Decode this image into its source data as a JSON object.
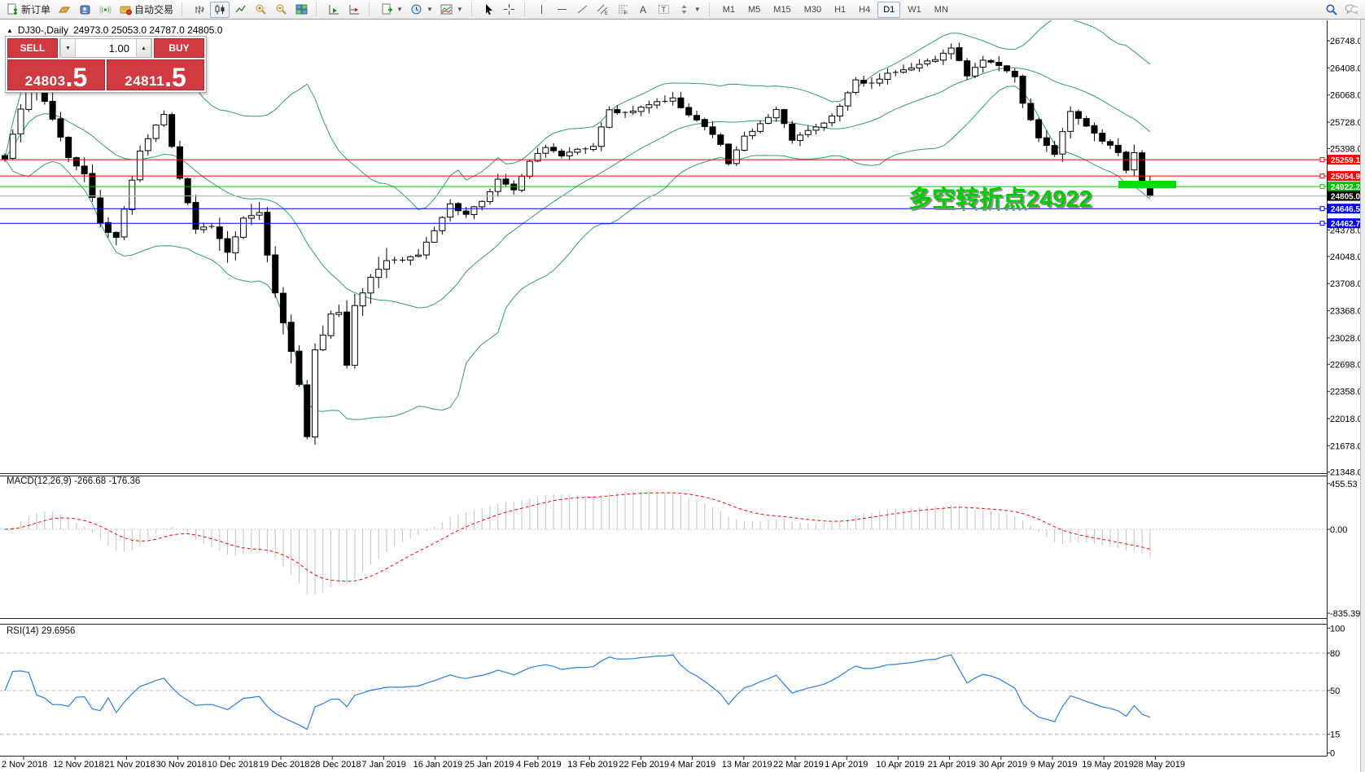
{
  "toolbar": {
    "new_order_label": "新订单",
    "autotrade_label": "自动交易",
    "timeframes": [
      "M1",
      "M5",
      "M15",
      "M30",
      "H1",
      "H4",
      "D1",
      "W1",
      "MN"
    ],
    "active_timeframe": "D1"
  },
  "chart": {
    "title_symbol": "DJ30-,Daily",
    "title_ohlc": "24973.0 25053.0 24787.0 24805.0",
    "annotation": "多空转折点24922"
  },
  "trade_panel": {
    "sell_label": "SELL",
    "buy_label": "BUY",
    "volume": "1.00",
    "sell_price_main": "24803",
    "sell_price_big": ".5",
    "buy_price_main": "24811",
    "buy_price_big": ".5"
  },
  "colors": {
    "bull": "#ffffff",
    "bear": "#000000",
    "wick": "#000000",
    "bollinger": "#2f9e68",
    "level_red": "#ff0000",
    "level_blue": "#0000ff",
    "level_green": "#00c400",
    "current_price_line": "#b8b8b8",
    "current_tag_bg": "#000000",
    "macd_hist": "#c3c3c3",
    "macd_signal": "#ff0000",
    "rsi_line": "#2a7fde",
    "highlight": "#00dd00",
    "panel_red": "#d23a41",
    "annotation_green": "#00cc00"
  },
  "chart_data": {
    "type": "candlestick+indicators",
    "symbol": "DJ30",
    "timeframe": "Daily",
    "bars": 145,
    "title_ohlc": {
      "open": 24973.0,
      "high": 25053.0,
      "low": 24787.0,
      "close": 24805.0
    },
    "price_axis_ticks": [
      26748,
      26408,
      26068,
      25728,
      25398,
      24378,
      24048,
      23708,
      23368,
      23028,
      22698,
      22358,
      22018,
      21678,
      21348
    ],
    "price_tags": [
      {
        "label": "25259.1",
        "value": 25259.1,
        "color": "#ff0000",
        "square": true
      },
      {
        "label": "25054.9",
        "value": 25054.9,
        "color": "#ff0000",
        "square": true
      },
      {
        "label": "24922.2",
        "value": 24922.2,
        "color": "#00c400",
        "square": true
      },
      {
        "label": "24805.0",
        "value": 24805.0,
        "color": "#000000",
        "line_color": "#b8b8b8",
        "square": false
      },
      {
        "label": "24646.5",
        "value": 24646.5,
        "color": "#0000ff",
        "square": true
      },
      {
        "label": "24462.7",
        "value": 24462.7,
        "color": "#0000ff",
        "square": true
      }
    ],
    "anchor_closes": [
      [
        0,
        25270
      ],
      [
        3,
        26180
      ],
      [
        5,
        25989
      ],
      [
        8,
        25286
      ],
      [
        10,
        25080
      ],
      [
        12,
        24465
      ],
      [
        14,
        24286
      ],
      [
        15,
        24640
      ],
      [
        17,
        25366
      ],
      [
        20,
        25826
      ],
      [
        22,
        25027
      ],
      [
        24,
        24389
      ],
      [
        26,
        24423
      ],
      [
        28,
        24100
      ],
      [
        30,
        24527
      ],
      [
        32,
        24597
      ],
      [
        34,
        23592
      ],
      [
        36,
        22859
      ],
      [
        37,
        22445
      ],
      [
        38,
        21792
      ],
      [
        39,
        22878
      ],
      [
        40,
        23062
      ],
      [
        41,
        23327
      ],
      [
        42,
        23346
      ],
      [
        43,
        22686
      ],
      [
        44,
        23433
      ],
      [
        46,
        23787
      ],
      [
        48,
        23995
      ],
      [
        50,
        24001
      ],
      [
        52,
        24065
      ],
      [
        54,
        24370
      ],
      [
        56,
        24706
      ],
      [
        58,
        24575
      ],
      [
        60,
        24737
      ],
      [
        62,
        25014
      ],
      [
        64,
        24881
      ],
      [
        66,
        25239
      ],
      [
        68,
        25411
      ],
      [
        70,
        25306
      ],
      [
        72,
        25390
      ],
      [
        74,
        25425
      ],
      [
        76,
        25883
      ],
      [
        78,
        25850
      ],
      [
        80,
        25916
      ],
      [
        82,
        25985
      ],
      [
        84,
        26032
      ],
      [
        86,
        25819
      ],
      [
        88,
        25673
      ],
      [
        90,
        25450
      ],
      [
        91,
        25208
      ],
      [
        93,
        25554
      ],
      [
        95,
        25709
      ],
      [
        97,
        25887
      ],
      [
        99,
        25502
      ],
      [
        101,
        25625
      ],
      [
        103,
        25717
      ],
      [
        105,
        25928
      ],
      [
        107,
        26258
      ],
      [
        109,
        26218
      ],
      [
        111,
        26341
      ],
      [
        113,
        26384
      ],
      [
        115,
        26452
      ],
      [
        117,
        26511
      ],
      [
        119,
        26656
      ],
      [
        121,
        26307
      ],
      [
        123,
        26504
      ],
      [
        125,
        26438
      ],
      [
        127,
        26297
      ],
      [
        128,
        25965
      ],
      [
        130,
        25532
      ],
      [
        132,
        25325
      ],
      [
        134,
        25862
      ],
      [
        136,
        25679
      ],
      [
        138,
        25490
      ],
      [
        140,
        25348
      ],
      [
        141,
        25126
      ],
      [
        142,
        25347
      ],
      [
        143,
        24973
      ],
      [
        144,
        24805
      ]
    ],
    "last_bar": {
      "open": 24973,
      "high": 25053,
      "low": 24787,
      "close": 24805
    },
    "bollinger": {
      "period": 20,
      "deviation": 2
    },
    "macd": {
      "label": "MACD(12,26,9)",
      "value": "-266.68",
      "signal_value": "-176.36",
      "axis_ticks": [
        "455.53",
        "0.00",
        "-835.39"
      ],
      "axis_values": [
        455.53,
        0,
        -835.39
      ]
    },
    "rsi": {
      "label": "RSI(14)",
      "value": "29.6956",
      "axis_ticks": [
        "100",
        "80",
        "50",
        "15",
        "0"
      ],
      "axis_values": [
        100,
        80,
        50,
        15,
        0
      ],
      "levels": [
        80,
        50,
        15
      ]
    },
    "date_labels": [
      "2 Nov 2018",
      "12 Nov 2018",
      "21 Nov 2018",
      "30 Nov 2018",
      "10 Dec 2018",
      "19 Dec 2018",
      "28 Dec 2018",
      "7 Jan 2019",
      "16 Jan 2019",
      "25 Jan 2019",
      "4 Feb 2019",
      "13 Feb 2019",
      "22 Feb 2019",
      "4 Mar 2019",
      "13 Mar 2019",
      "22 Mar 2019",
      "1 Apr 2019",
      "10 Apr 2019",
      "21 Apr 2019",
      "30 Apr 2019",
      "9 May 2019",
      "19 May 2019",
      "28 May 2019"
    ]
  }
}
